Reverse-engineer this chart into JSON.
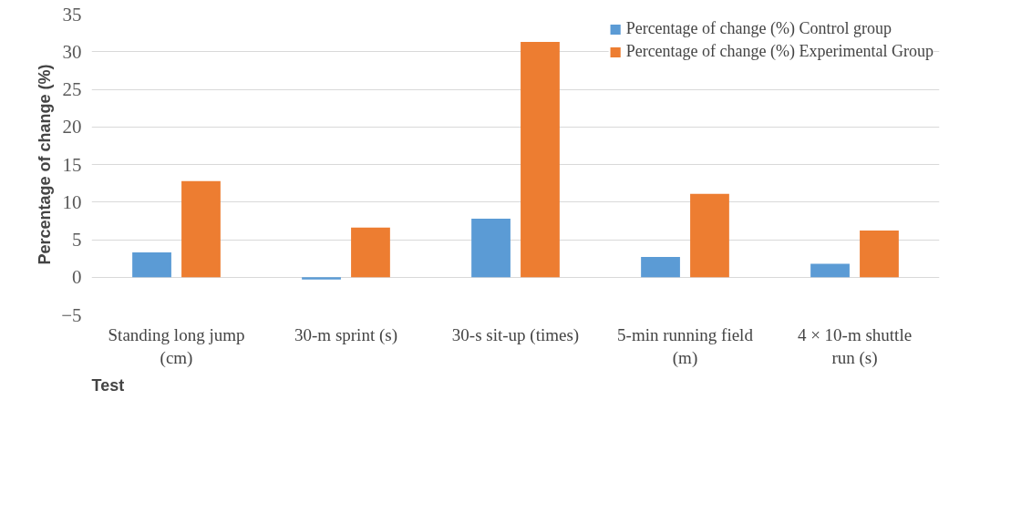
{
  "chart_data": {
    "type": "bar",
    "xlabel": "Test",
    "ylabel": "Percentage of change (%)",
    "categories": [
      "Standing long jump (cm)",
      "30-m sprint (s)",
      "30-s sit-up (times)",
      "5-min running field (m)",
      "4 × 10-m shuttle run (s)"
    ],
    "series": [
      {
        "name": "Percentage of change (%) Control group",
        "color": "#5b9bd5",
        "values": [
          3.3,
          -0.3,
          7.8,
          2.7,
          1.8
        ]
      },
      {
        "name": "Percentage of change (%) Experimental Group",
        "color": "#ed7d31",
        "values": [
          12.8,
          6.6,
          31.3,
          11.1,
          6.2
        ]
      }
    ],
    "ylim": [
      -5,
      35
    ],
    "yticks": [
      -5,
      0,
      5,
      10,
      15,
      20,
      25,
      30,
      35
    ],
    "grid": "y",
    "legend": "top right"
  }
}
